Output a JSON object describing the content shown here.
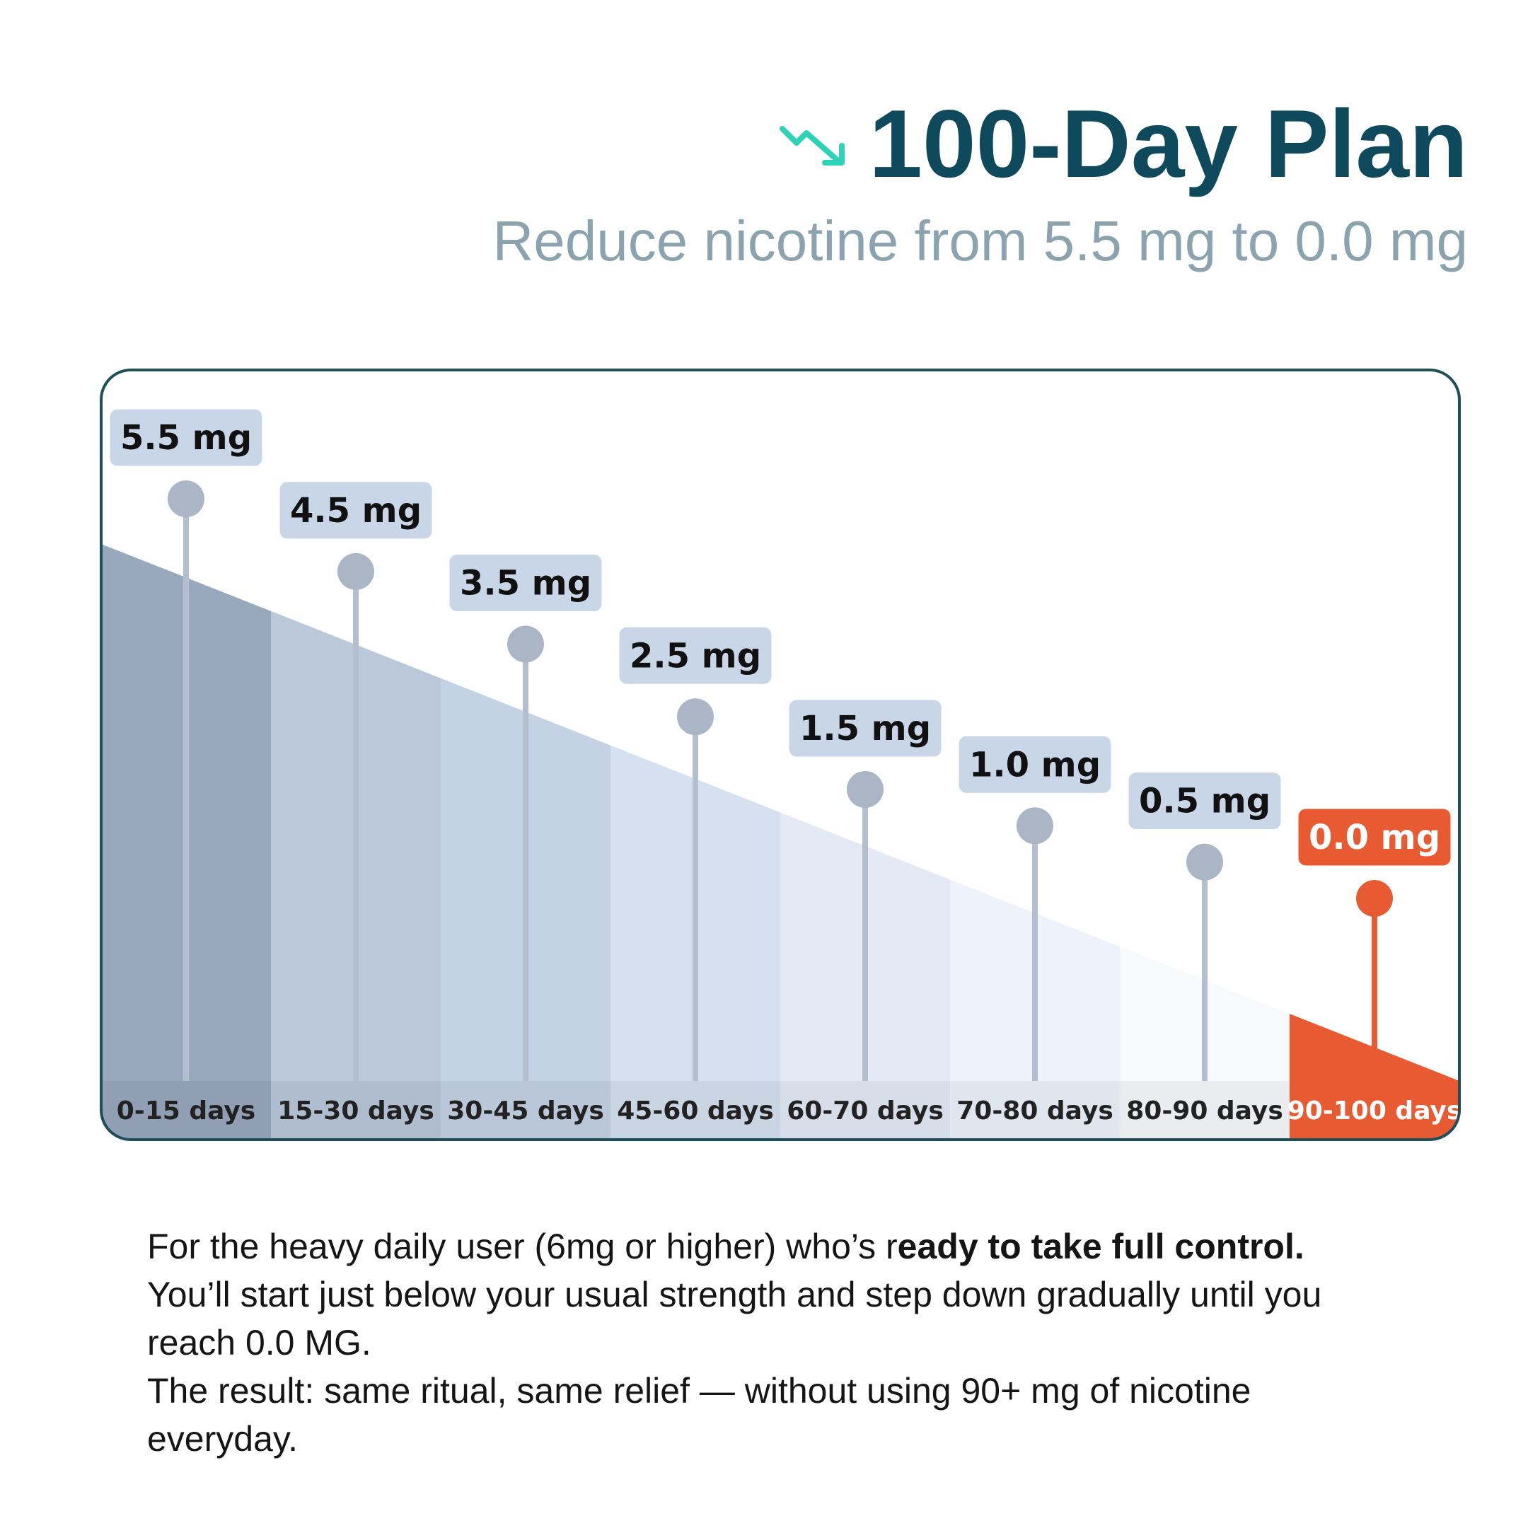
{
  "chart_data": {
    "type": "lollipop",
    "title": "100-Day Plan",
    "subtitle": "Reduce nicotine from 5.5 mg to 0.0 mg",
    "categories": [
      "0-15 days",
      "15-30 days",
      "30-45 days",
      "45-60 days",
      "60-70 days",
      "70-80 days",
      "80-90 days",
      "90-100 days"
    ],
    "values": [
      5.5,
      4.5,
      3.5,
      2.5,
      1.5,
      1.0,
      0.5,
      0.0
    ],
    "value_labels": [
      "5.5 mg",
      "4.5 mg",
      "3.5 mg",
      "2.5 mg",
      "1.5 mg",
      "1.0 mg",
      "0.5 mg",
      "0.0 mg"
    ],
    "colors": [
      "#98a8bd",
      "#bac8da",
      "#c3d2e4",
      "#d5e1f0",
      "#e3eaf6",
      "#eef3fb",
      "#f7f9fd",
      "#e85a32"
    ]
  },
  "description": {
    "paragraphs": [
      [
        "For the heavy daily user (6mg or higher) who’s r",
        "eady to take full control.",
        " You’ll start just below your usual strength and step down gradually until you reach 0.0 MG."
      ],
      [
        "The result: same ritual, same relief — without using 90+ mg of nicotine everyday."
      ]
    ]
  }
}
